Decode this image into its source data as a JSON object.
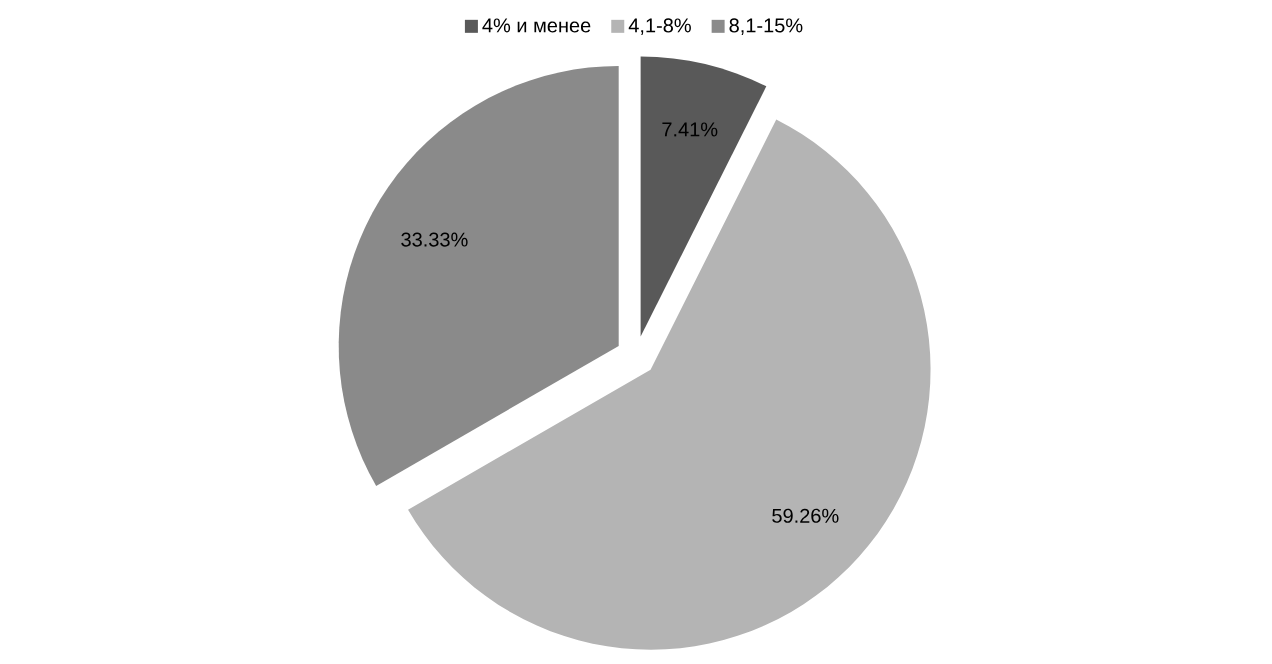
{
  "chart_data": {
    "type": "pie",
    "categories": [
      "4% и менее",
      "4,1-8%",
      "8,1-15%"
    ],
    "values": [
      7.41,
      59.26,
      33.33
    ],
    "colors": [
      "#595959",
      "#b4b4b4",
      "#8a8a8a"
    ],
    "value_labels": [
      "7.41%",
      "59.26%",
      "33.33%"
    ],
    "legend": "top"
  }
}
